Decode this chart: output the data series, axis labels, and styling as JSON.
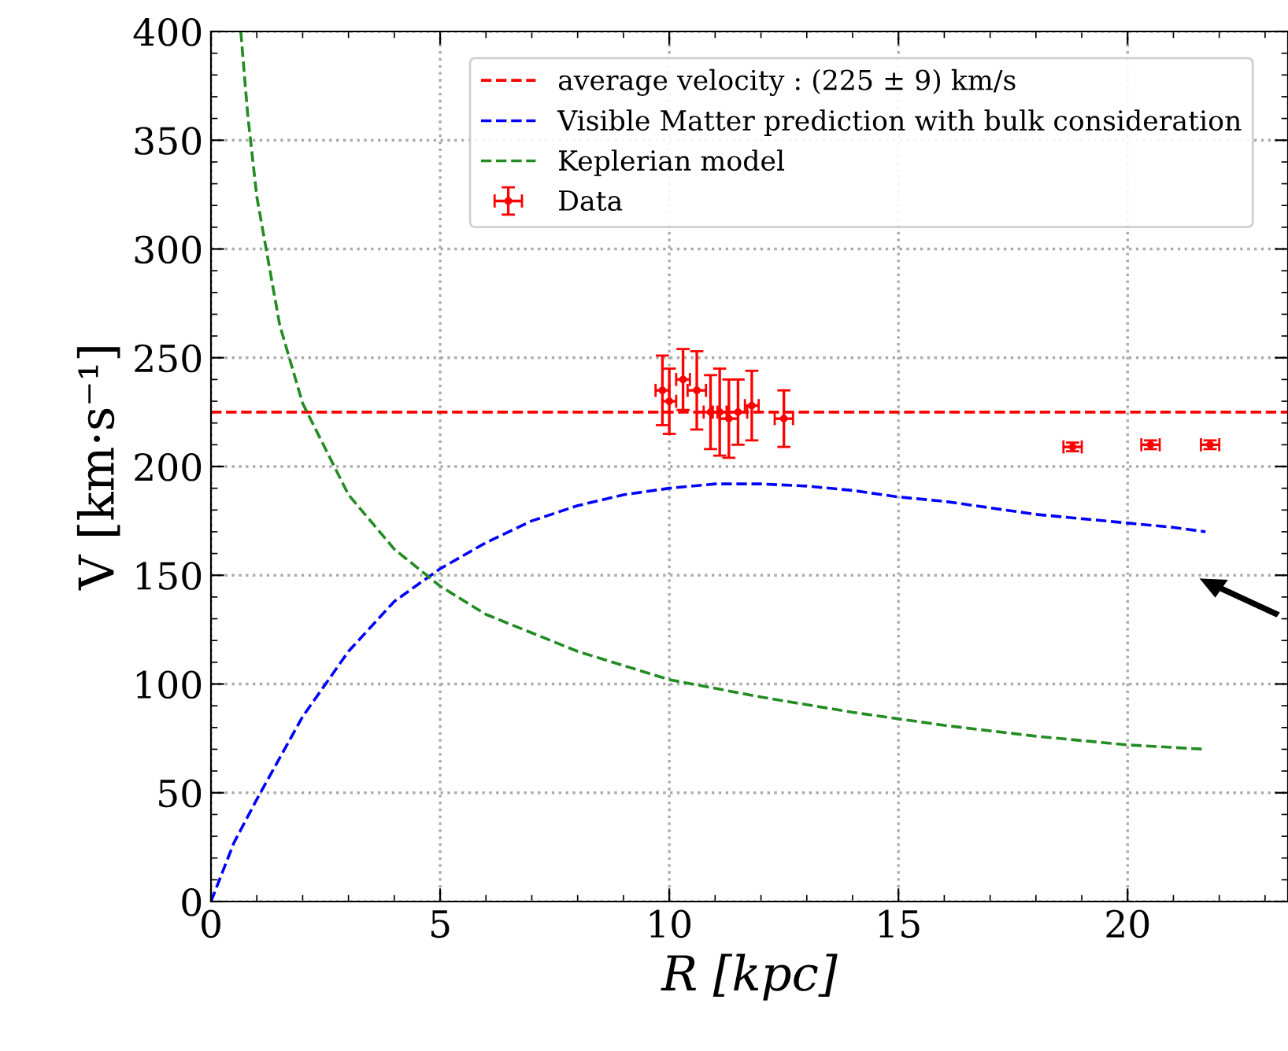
{
  "chart_data": {
    "type": "line",
    "xlabel": "R [kpc]",
    "ylabel": "V [km·s⁻¹]",
    "xlim": [
      0,
      23.5
    ],
    "ylim": [
      0,
      400
    ],
    "xticks": [
      0,
      5,
      10,
      15,
      20
    ],
    "yticks": [
      0,
      50,
      100,
      150,
      200,
      250,
      300,
      350,
      400
    ],
    "grid": true,
    "legend": "top right",
    "line_style": "dashed",
    "ref_lines": [
      {
        "axis": "y",
        "value": 225,
        "label": "average velocity : (225 ± 9) km/s",
        "color": "#ff0000",
        "line_style": "dashed"
      }
    ],
    "series": [
      {
        "name": "Visible Matter prediction with bulk consideration",
        "color": "#0000ff",
        "x": [
          0,
          0.5,
          1,
          2,
          3,
          4,
          5,
          6,
          7,
          8,
          9,
          10,
          11,
          12,
          13,
          14,
          15,
          16,
          17,
          18,
          19,
          20,
          21,
          21.7
        ],
        "values": [
          0,
          27,
          47,
          85,
          115,
          138,
          153,
          165,
          175,
          182,
          187,
          190,
          192,
          192,
          191,
          189,
          186,
          184,
          181,
          178,
          176,
          174,
          172,
          170
        ]
      },
      {
        "name": "Keplerian model",
        "color": "#228b22",
        "x": [
          0.65,
          0.8,
          1,
          1.5,
          2,
          3,
          4,
          5,
          6,
          8,
          10,
          12,
          14,
          16,
          18,
          20,
          21.7
        ],
        "values": [
          400,
          362,
          324,
          265,
          229,
          187,
          162,
          145,
          132,
          115,
          102,
          94,
          87,
          81,
          76,
          72,
          70
        ]
      },
      {
        "name": "Data",
        "type": "scatter",
        "color": "#ff0000",
        "marker": "circle",
        "x": [
          9.85,
          10.0,
          10.3,
          10.6,
          10.9,
          11.1,
          11.3,
          11.5,
          11.8,
          12.5,
          18.8,
          20.5,
          21.8
        ],
        "values": [
          235,
          230,
          240,
          235,
          225,
          225,
          222,
          225,
          228,
          222,
          209,
          210,
          210
        ],
        "errors": [
          16,
          15,
          14,
          18,
          17,
          20,
          18,
          15,
          16,
          13,
          2,
          2,
          2
        ],
        "xerrors": [
          0.15,
          0.15,
          0.15,
          0.2,
          0.15,
          0.15,
          0.2,
          0.2,
          0.15,
          0.2,
          0.2,
          0.2,
          0.2
        ]
      }
    ]
  }
}
